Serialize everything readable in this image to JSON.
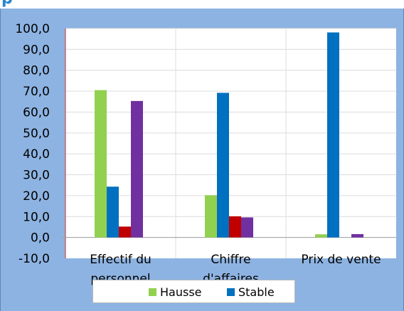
{
  "header_fragment": "p",
  "chart_data": {
    "type": "bar",
    "categories": [
      "Effectif du personnel",
      "Chiffre d'affaires",
      "Prix de vente"
    ],
    "category_labels_visible": [
      [
        "Effectif du",
        "personnel"
      ],
      [
        "Chiffre",
        "d'affaires"
      ],
      [
        "Prix de vente"
      ]
    ],
    "series": [
      {
        "name": "Hausse",
        "color": "#92d050",
        "values": [
          70.5,
          20.2,
          1.5
        ]
      },
      {
        "name": "Stable",
        "color": "#0070c0",
        "values": [
          24.3,
          69.2,
          98.1
        ]
      },
      {
        "color": "#c00000",
        "values": [
          5.2,
          10.1,
          0
        ]
      },
      {
        "color": "#7030a0",
        "values": [
          65.3,
          9.6,
          1.6
        ]
      }
    ],
    "ylim": [
      -10,
      100
    ],
    "yticks": [
      "-10,0",
      "0,0",
      "10,0",
      "20,0",
      "30,0",
      "40,0",
      "50,0",
      "60,0",
      "70,0",
      "80,0",
      "90,0",
      "100,0"
    ],
    "xlabel": "",
    "ylabel": "",
    "grid": true,
    "legend": {
      "placement": "bottom",
      "entries": [
        "Hausse",
        "Stable"
      ]
    }
  }
}
